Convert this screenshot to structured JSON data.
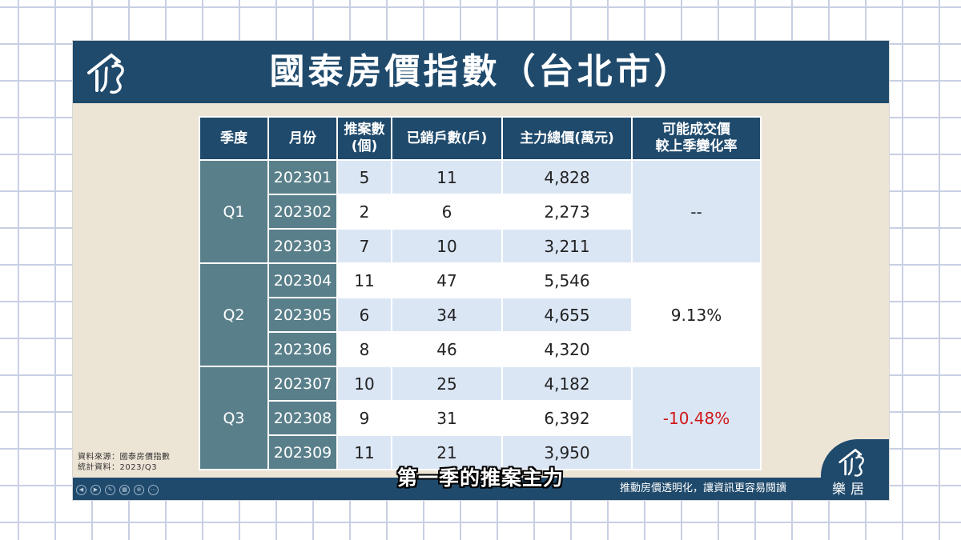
{
  "slide": {
    "title": "國泰房價指數（台北市）",
    "source_line1": "資料來源：國泰房價指數",
    "source_line2": "統計資料：2023/Q3",
    "footer_text": "推動房價透明化，讓資訊更容易閱讀",
    "brand": "樂居",
    "logo_icon": "leju-logo-icon"
  },
  "table": {
    "headers": [
      "季度",
      "月份",
      "推案數\n(個)",
      "已銷戶數(戶)",
      "主力總價(萬元)",
      "可能成交價\n較上季變化率"
    ],
    "quarters": [
      {
        "label": "Q1",
        "change": "--"
      },
      {
        "label": "Q2",
        "change": "9.13%"
      },
      {
        "label": "Q3",
        "change": "-10.48%"
      }
    ],
    "rows": [
      {
        "month": "202301",
        "projects": "5",
        "sold": "11",
        "price": "4,828"
      },
      {
        "month": "202302",
        "projects": "2",
        "sold": "6",
        "price": "2,273"
      },
      {
        "month": "202303",
        "projects": "7",
        "sold": "10",
        "price": "3,211"
      },
      {
        "month": "202304",
        "projects": "11",
        "sold": "47",
        "price": "5,546"
      },
      {
        "month": "202305",
        "projects": "6",
        "sold": "34",
        "price": "4,655"
      },
      {
        "month": "202306",
        "projects": "8",
        "sold": "46",
        "price": "4,320"
      },
      {
        "month": "202307",
        "projects": "10",
        "sold": "25",
        "price": "4,182"
      },
      {
        "month": "202308",
        "projects": "9",
        "sold": "31",
        "price": "6,392"
      },
      {
        "month": "202309",
        "projects": "11",
        "sold": "21",
        "price": "3,950"
      }
    ]
  },
  "subtitle": "第一季的推案主力",
  "colors": {
    "navy": "#1f4a6c",
    "teal": "#597f8a",
    "light_blue": "#dbe6f5",
    "negative": "#d01818",
    "slide_bg": "#ece4d5"
  }
}
